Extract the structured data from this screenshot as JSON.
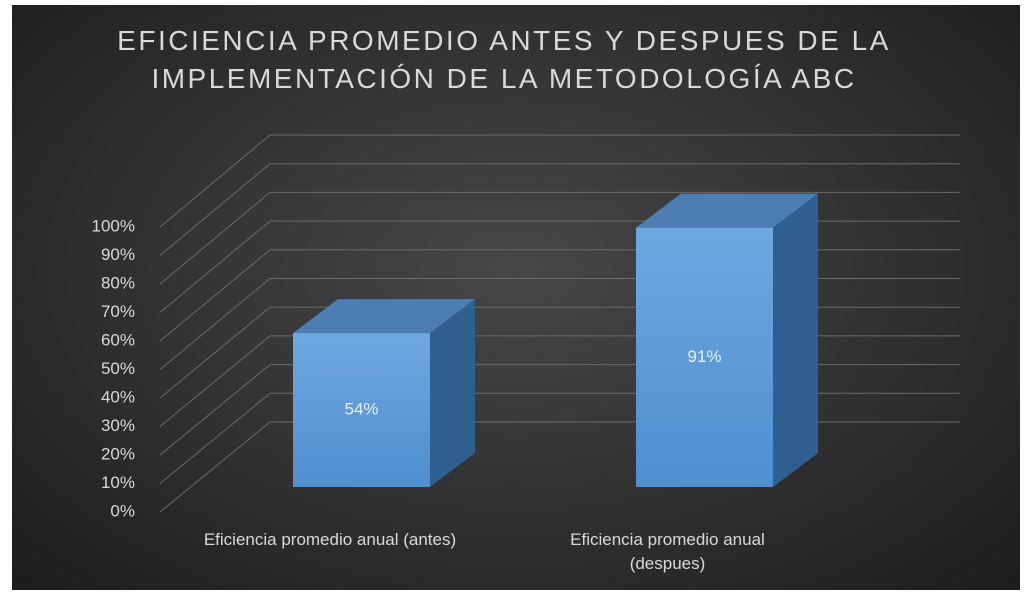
{
  "chart_data": {
    "type": "bar3d",
    "title": "EFICIENCIA PROMEDIO ANTES Y DESPUES DE LA IMPLEMENTACIÓN DE LA METODOLOGÍA ABC",
    "categories": [
      "Eficiencia promedio anual (antes)",
      "Eficiencia promedio anual (despues)"
    ],
    "values": [
      54,
      91
    ],
    "value_labels": [
      "54%",
      "91%"
    ],
    "color": "#5b9bd5",
    "ylim": [
      0,
      100
    ],
    "yticks": [
      {
        "value": 0,
        "label": "0%"
      },
      {
        "value": 10,
        "label": "10%"
      },
      {
        "value": 20,
        "label": "20%"
      },
      {
        "value": 30,
        "label": "30%"
      },
      {
        "value": 40,
        "label": "40%"
      },
      {
        "value": 50,
        "label": "50%"
      },
      {
        "value": 60,
        "label": "60%"
      },
      {
        "value": 70,
        "label": "70%"
      },
      {
        "value": 80,
        "label": "80%"
      },
      {
        "value": 90,
        "label": "90%"
      },
      {
        "value": 100,
        "label": "100%"
      }
    ],
    "grid": true
  }
}
